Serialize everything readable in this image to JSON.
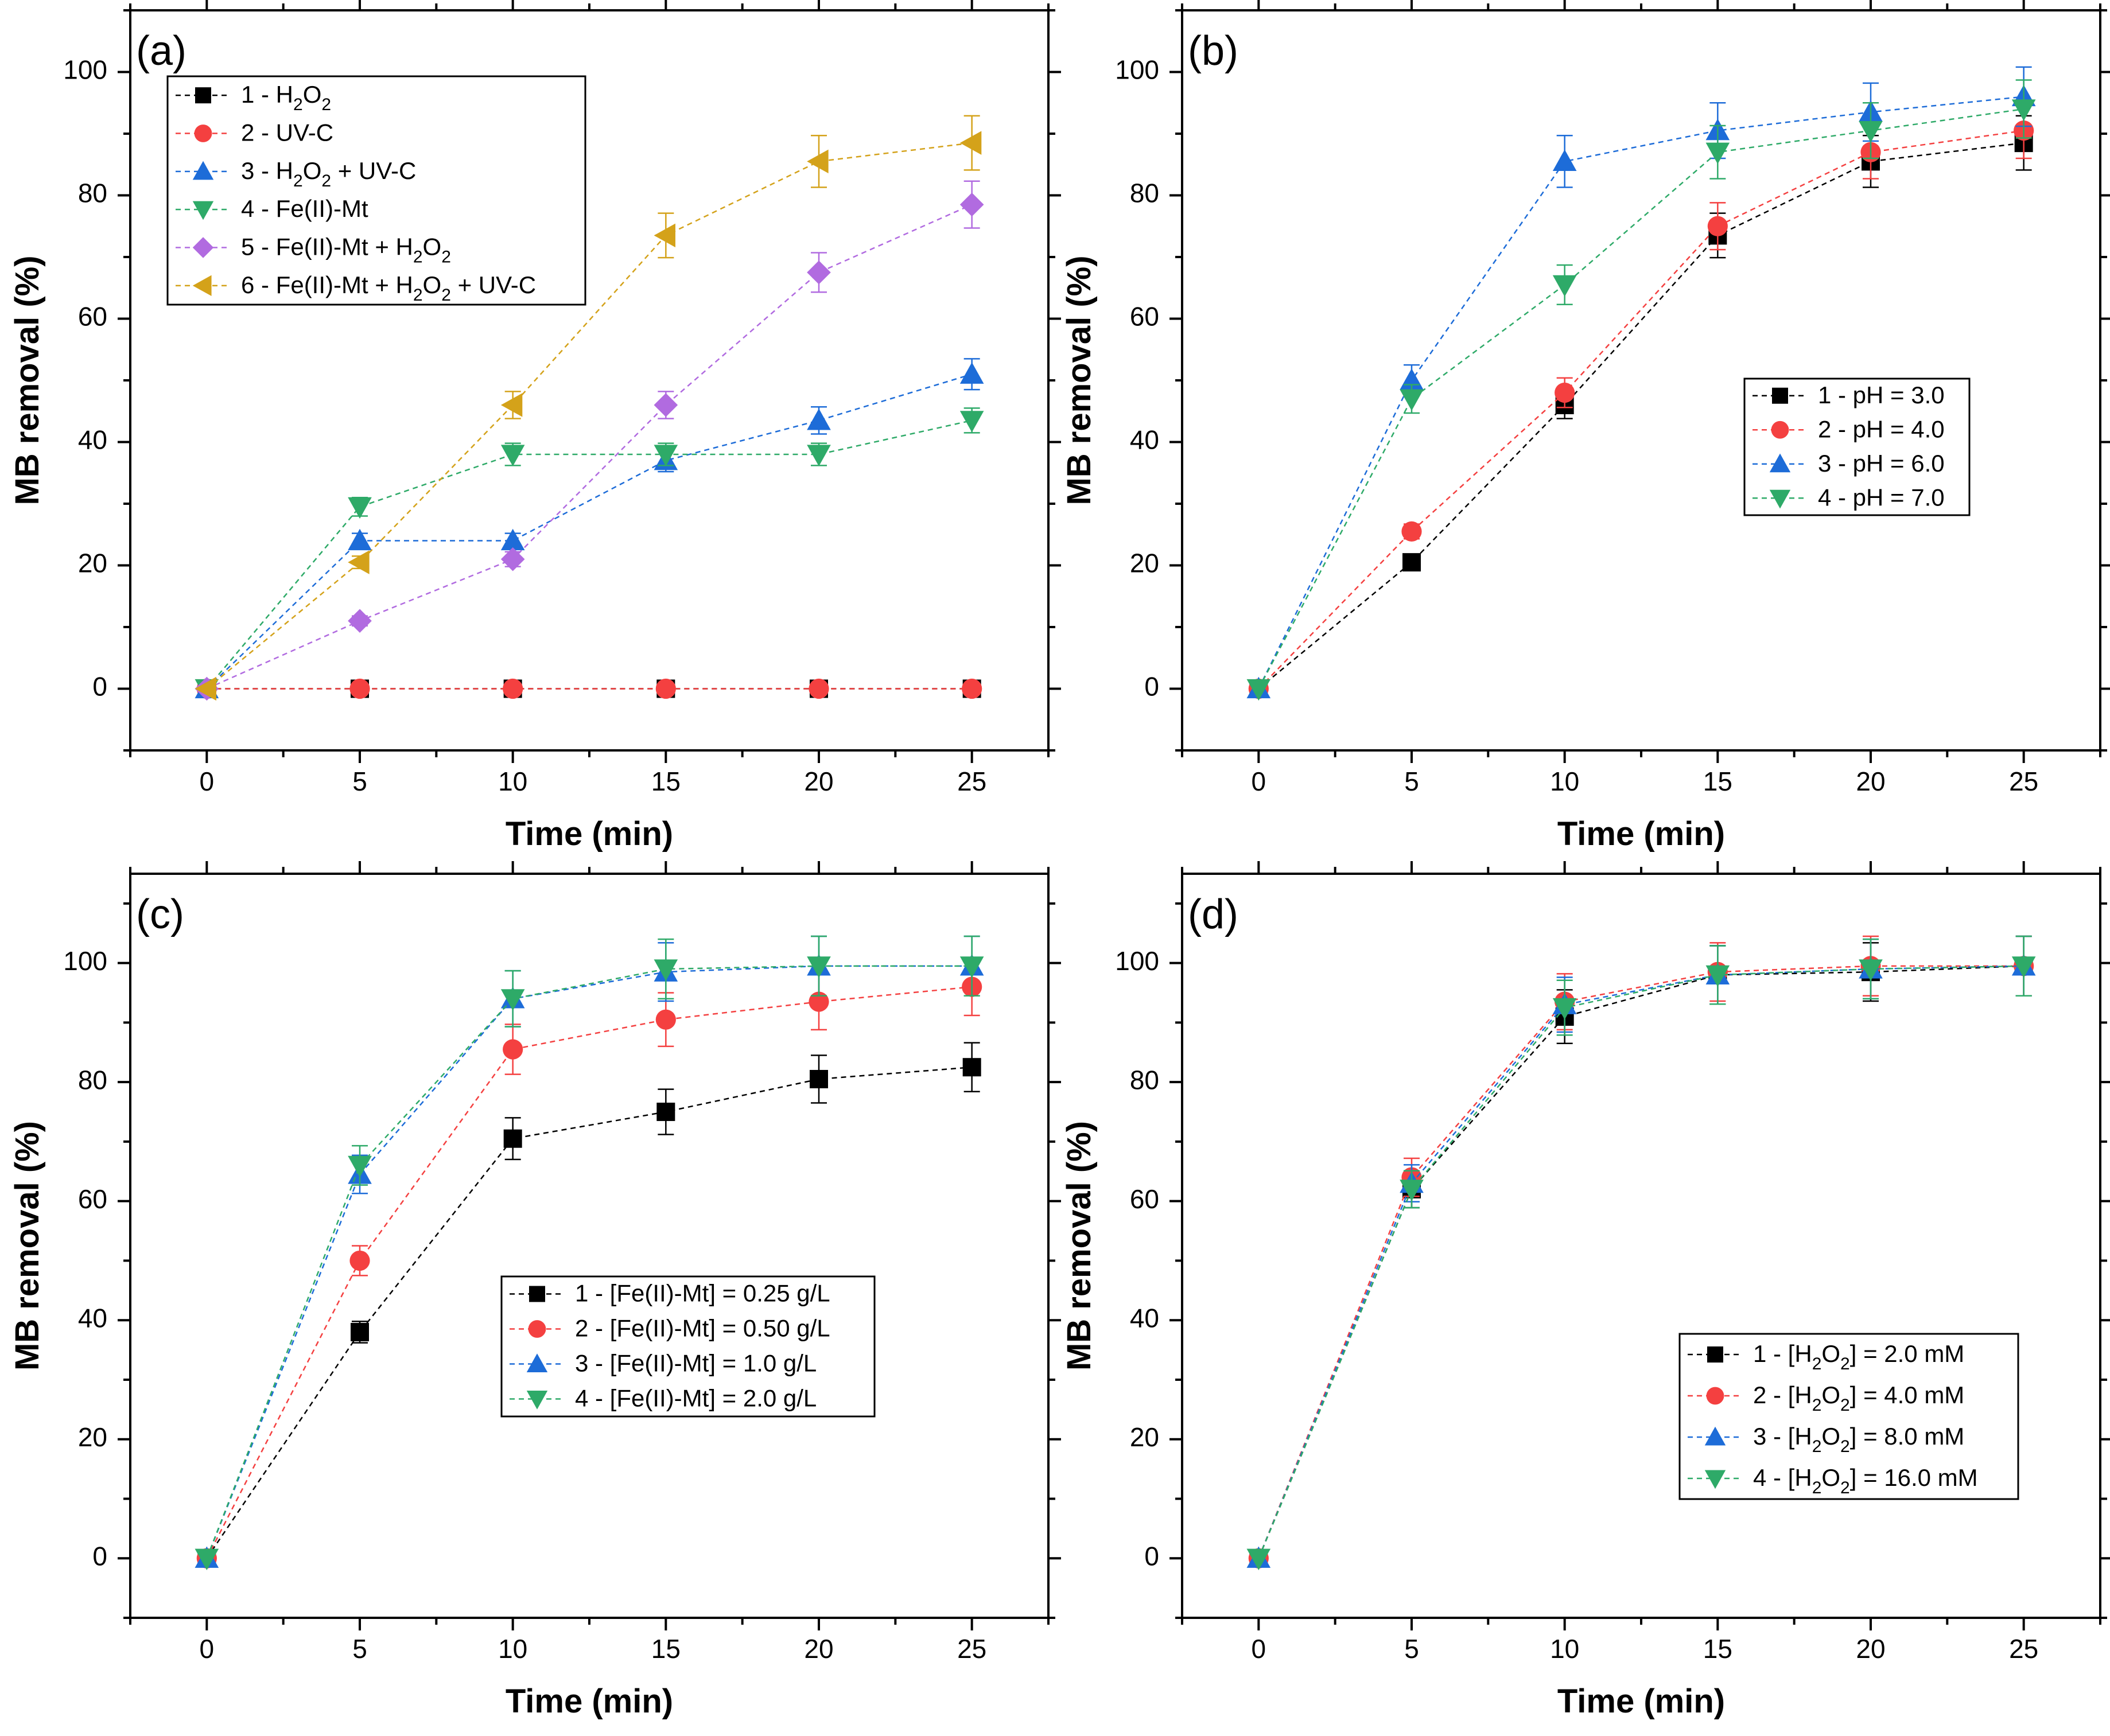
{
  "chart_data": [
    {
      "type": "line",
      "panel_label": "(a)",
      "xlabel": "Time (min)",
      "ylabel": "MB removal (%)",
      "xlim": [
        -2.5,
        27.5
      ],
      "ylim": [
        -10,
        110
      ],
      "x_ticks": [
        0,
        5,
        10,
        15,
        20,
        25
      ],
      "y_ticks": [
        0,
        20,
        40,
        60,
        80,
        100
      ],
      "legend_position": "top-left",
      "x": [
        0,
        5,
        10,
        15,
        20,
        25
      ],
      "series": [
        {
          "name": "1 - H₂O₂",
          "marker": "square",
          "color": "#000000",
          "values": [
            0,
            0,
            0,
            0,
            0,
            0
          ],
          "errors": [
            0.5,
            0.5,
            0.5,
            0.5,
            0.5,
            0.5
          ]
        },
        {
          "name": "2 - UV-C",
          "marker": "circle",
          "color": "#f44040",
          "values": [
            0,
            0,
            0,
            0,
            0,
            0
          ],
          "errors": [
            0.5,
            0.5,
            0.5,
            0.5,
            0.5,
            0.5
          ]
        },
        {
          "name": "3 - H₂O₂ + UV-C",
          "marker": "triangle-up",
          "color": "#1d6cd8",
          "values": [
            0,
            24,
            24,
            37,
            43.5,
            51
          ],
          "errors": [
            0.5,
            1.2,
            1.2,
            1.8,
            2.2,
            2.5
          ]
        },
        {
          "name": "4 - Fe(II)-Mt",
          "marker": "triangle-down",
          "color": "#2eaa68",
          "values": [
            0,
            29.5,
            38,
            38,
            38,
            43.5
          ],
          "errors": [
            0.5,
            1.5,
            1.8,
            1.8,
            1.8,
            2.0
          ]
        },
        {
          "name": "5 - Fe(II)-Mt + H₂O₂",
          "marker": "diamond",
          "color": "#b16be0",
          "values": [
            0,
            11,
            21,
            46,
            67.5,
            78.5
          ],
          "errors": [
            0.5,
            0.8,
            1.2,
            2.2,
            3.2,
            3.8
          ]
        },
        {
          "name": "6 - Fe(II)-Mt + H₂O₂ + UV-C",
          "marker": "triangle-left",
          "color": "#d4a21a",
          "values": [
            0,
            20.5,
            46,
            73.5,
            85.5,
            88.5
          ],
          "errors": [
            0.5,
            1.0,
            2.2,
            3.6,
            4.2,
            4.4
          ]
        }
      ]
    },
    {
      "type": "line",
      "panel_label": "(b)",
      "xlabel": "Time (min)",
      "ylabel": "MB removal (%)",
      "xlim": [
        -2.5,
        27.5
      ],
      "ylim": [
        -10,
        110
      ],
      "x_ticks": [
        0,
        5,
        10,
        15,
        20,
        25
      ],
      "y_ticks": [
        0,
        20,
        40,
        60,
        80,
        100
      ],
      "legend_position": "center-right",
      "x": [
        0,
        5,
        10,
        15,
        20,
        25
      ],
      "series": [
        {
          "name": "1 - pH = 3.0",
          "marker": "square",
          "color": "#000000",
          "values": [
            0,
            20.5,
            46,
            73.5,
            85.5,
            88.5
          ],
          "errors": [
            0.5,
            1.0,
            2.2,
            3.6,
            4.2,
            4.4
          ]
        },
        {
          "name": "2 - pH = 4.0",
          "marker": "circle",
          "color": "#f44040",
          "values": [
            0,
            25.5,
            48,
            75,
            87,
            90.5
          ],
          "errors": [
            0.5,
            1.2,
            2.4,
            3.8,
            4.3,
            4.5
          ]
        },
        {
          "name": "3 - pH = 6.0",
          "marker": "triangle-up",
          "color": "#1d6cd8",
          "values": [
            0,
            50,
            85.5,
            90.5,
            93.5,
            96
          ],
          "errors": [
            0.5,
            2.5,
            4.2,
            4.5,
            4.7,
            4.8
          ]
        },
        {
          "name": "4 - pH = 7.0",
          "marker": "triangle-down",
          "color": "#2eaa68",
          "values": [
            0,
            47,
            65.5,
            87,
            90.5,
            94
          ],
          "errors": [
            0.5,
            2.3,
            3.2,
            4.3,
            4.5,
            4.7
          ]
        }
      ]
    },
    {
      "type": "line",
      "panel_label": "(c)",
      "xlabel": "Time (min)",
      "ylabel": "MB removal (%)",
      "xlim": [
        -2.5,
        27.5
      ],
      "ylim": [
        -10,
        115
      ],
      "x_ticks": [
        0,
        5,
        10,
        15,
        20,
        25
      ],
      "y_ticks": [
        0,
        20,
        40,
        60,
        80,
        100
      ],
      "legend_position": "lower-center",
      "x": [
        0,
        5,
        10,
        15,
        20,
        25
      ],
      "series": [
        {
          "name": "1 - [Fe(II)-Mt] = 0.25 g/L",
          "marker": "square",
          "color": "#000000",
          "values": [
            0,
            38,
            70.5,
            75,
            80.5,
            82.5
          ],
          "errors": [
            0.5,
            1.8,
            3.5,
            3.8,
            4.0,
            4.1
          ]
        },
        {
          "name": "2 - [Fe(II)-Mt] = 0.50 g/L",
          "marker": "circle",
          "color": "#f44040",
          "values": [
            0,
            50,
            85.5,
            90.5,
            93.5,
            96
          ],
          "errors": [
            0.5,
            2.5,
            4.2,
            4.5,
            4.7,
            4.8
          ]
        },
        {
          "name": "3 - [Fe(II)-Mt] = 1.0 g/L",
          "marker": "triangle-up",
          "color": "#1d6cd8",
          "values": [
            0,
            64.5,
            94,
            98.5,
            99.5,
            99.5
          ],
          "errors": [
            0.5,
            3.2,
            4.7,
            4.9,
            5.0,
            5.0
          ]
        },
        {
          "name": "4 - [Fe(II)-Mt] = 2.0 g/L",
          "marker": "triangle-down",
          "color": "#2eaa68",
          "values": [
            0,
            66,
            94,
            99,
            99.5,
            99.5
          ],
          "errors": [
            0.5,
            3.3,
            4.7,
            5.0,
            5.0,
            5.0
          ]
        }
      ]
    },
    {
      "type": "line",
      "panel_label": "(d)",
      "xlabel": "Time (min)",
      "ylabel": "MB removal (%)",
      "xlim": [
        -2.5,
        27.5
      ],
      "ylim": [
        -10,
        115
      ],
      "x_ticks": [
        0,
        5,
        10,
        15,
        20,
        25
      ],
      "y_ticks": [
        0,
        20,
        40,
        60,
        80,
        100
      ],
      "legend_position": "lower-right",
      "x": [
        0,
        5,
        10,
        15,
        20,
        25
      ],
      "series": [
        {
          "name": "1 - [H₂O₂] = 2.0 mM",
          "marker": "square",
          "color": "#000000",
          "values": [
            0,
            62,
            91,
            98,
            98.5,
            99.5
          ],
          "errors": [
            0.5,
            3.1,
            4.5,
            4.9,
            4.9,
            5.0
          ]
        },
        {
          "name": "2 - [H₂O₂] = 4.0 mM",
          "marker": "circle",
          "color": "#f44040",
          "values": [
            0,
            64,
            93.5,
            98.5,
            99.5,
            99.5
          ],
          "errors": [
            0.5,
            3.2,
            4.7,
            4.9,
            5.0,
            5.0
          ]
        },
        {
          "name": "3 - [H₂O₂] = 8.0 mM",
          "marker": "triangle-up",
          "color": "#1d6cd8",
          "values": [
            0,
            63,
            93,
            98,
            99,
            99.5
          ],
          "errors": [
            0.5,
            3.1,
            4.6,
            4.9,
            5.0,
            5.0
          ]
        },
        {
          "name": "4 - [H₂O₂] = 16.0 mM",
          "marker": "triangle-down",
          "color": "#2eaa68",
          "values": [
            0,
            62,
            92.5,
            98,
            99,
            99.5
          ],
          "errors": [
            0.5,
            3.1,
            4.6,
            4.9,
            5.0,
            5.0
          ]
        }
      ]
    }
  ]
}
